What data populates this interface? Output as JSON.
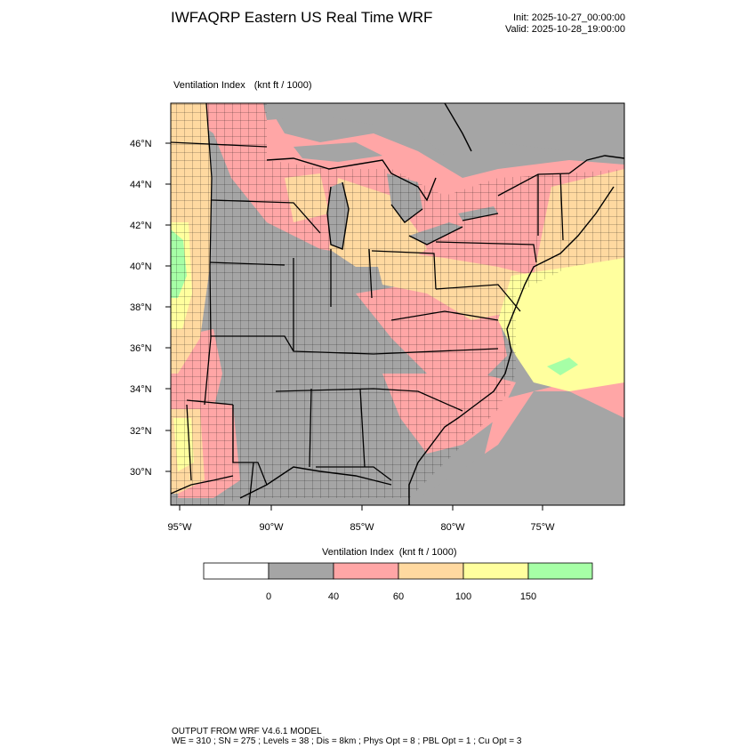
{
  "header": {
    "title": "IWFAQRP Eastern US Real Time WRF",
    "init_label": "Init: 2025-10-27_00:00:00",
    "valid_label": "Valid: 2025-10-28_19:00:00"
  },
  "field": {
    "name": "Ventilation Index",
    "units": "(knt ft / 1000)"
  },
  "map": {
    "lat_labels": [
      "46°N",
      "44°N",
      "42°N",
      "40°N",
      "38°N",
      "36°N",
      "34°N",
      "32°N",
      "30°N"
    ],
    "lon_labels": [
      "95°W",
      "90°W",
      "85°W",
      "80°W",
      "75°W"
    ]
  },
  "colorbar": {
    "title": "Ventilation Index",
    "units": "(knt ft / 1000)",
    "tick_labels": [
      "0",
      "40",
      "60",
      "100",
      "150"
    ],
    "colors": [
      "#ffffff",
      "#a5a5a5",
      "#ffa6a6",
      "#ffd9a0",
      "#ffff9e",
      "#a6ffa6"
    ]
  },
  "colors": {
    "land_low": "#a5a5a5",
    "water": "#a5a5a5"
  },
  "footer": {
    "line1": "OUTPUT FROM WRF V4.6.1 MODEL",
    "line2": "WE = 310 ; SN = 275 ; Levels = 38 ; Dis = 8km ; Phys Opt = 8 ; PBL Opt = 1 ; Cu Opt = 3"
  }
}
